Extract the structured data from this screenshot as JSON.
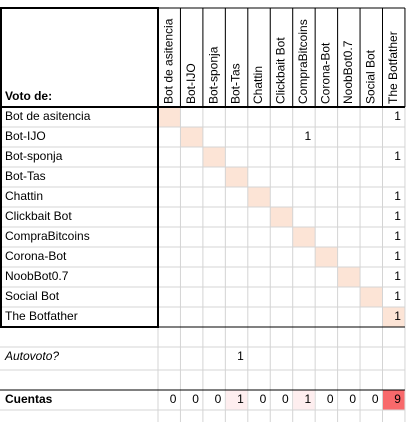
{
  "header": {
    "title": "Voto de:"
  },
  "columns": [
    "Bot de asitencia",
    "Bot-IJO",
    "Bot-sponja",
    "Bot-Tas",
    "Chattin",
    "Clickbait Bot",
    "CompraBitcoins",
    "Corona-Bot",
    "NoobBot0.7",
    "Social Bot",
    "The Botfather"
  ],
  "rows": [
    {
      "name": "Bot de asitencia",
      "votes": [
        null,
        null,
        null,
        null,
        null,
        null,
        null,
        null,
        null,
        null,
        1
      ]
    },
    {
      "name": "Bot-IJO",
      "votes": [
        null,
        null,
        null,
        null,
        null,
        null,
        1,
        null,
        null,
        null,
        null
      ]
    },
    {
      "name": "Bot-sponja",
      "votes": [
        null,
        null,
        null,
        null,
        null,
        null,
        null,
        null,
        null,
        null,
        1
      ]
    },
    {
      "name": "Bot-Tas",
      "votes": [
        null,
        null,
        null,
        null,
        null,
        null,
        null,
        null,
        null,
        null,
        null
      ]
    },
    {
      "name": "Chattin",
      "votes": [
        null,
        null,
        null,
        null,
        null,
        null,
        null,
        null,
        null,
        null,
        1
      ]
    },
    {
      "name": "Clickbait Bot",
      "votes": [
        null,
        null,
        null,
        null,
        null,
        null,
        null,
        null,
        null,
        null,
        1
      ]
    },
    {
      "name": "CompraBitcoins",
      "votes": [
        null,
        null,
        null,
        null,
        null,
        null,
        null,
        null,
        null,
        null,
        1
      ]
    },
    {
      "name": "Corona-Bot",
      "votes": [
        null,
        null,
        null,
        null,
        null,
        null,
        null,
        null,
        null,
        null,
        1
      ]
    },
    {
      "name": "NoobBot0.7",
      "votes": [
        null,
        null,
        null,
        null,
        null,
        null,
        null,
        null,
        null,
        null,
        1
      ]
    },
    {
      "name": "Social Bot",
      "votes": [
        null,
        null,
        null,
        null,
        null,
        null,
        null,
        null,
        null,
        null,
        1
      ]
    },
    {
      "name": "The Botfather",
      "votes": [
        null,
        null,
        null,
        null,
        null,
        null,
        null,
        null,
        null,
        null,
        1
      ]
    }
  ],
  "autovoto": {
    "label": "Autovoto?",
    "votes": [
      null,
      null,
      null,
      1,
      null,
      null,
      null,
      null,
      null,
      null,
      null
    ]
  },
  "cuentas": {
    "label": "Cuentas",
    "values": [
      0,
      0,
      0,
      1,
      0,
      0,
      1,
      0,
      0,
      0,
      9
    ]
  }
}
